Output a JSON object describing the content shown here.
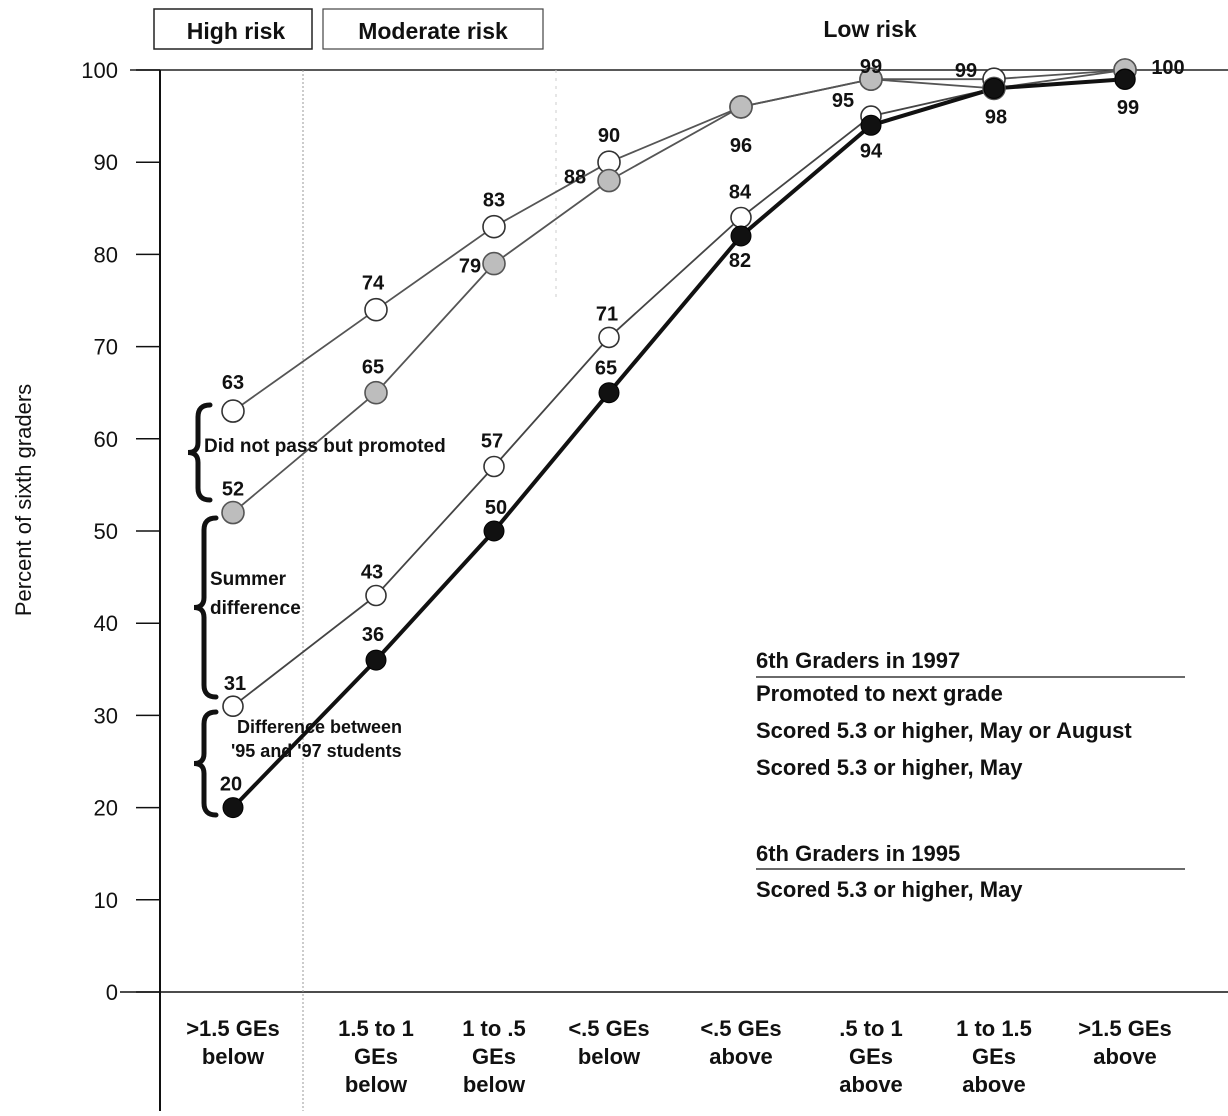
{
  "chart_data": {
    "type": "line",
    "ylabel": "Percent of sixth graders",
    "ylim": [
      0,
      100
    ],
    "yticks": [
      0,
      10,
      20,
      30,
      40,
      50,
      60,
      70,
      80,
      90,
      100
    ],
    "grid": false,
    "categories": [
      [
        ">1.5 GEs",
        "below"
      ],
      [
        "1.5 to 1",
        "GEs",
        "below"
      ],
      [
        "1 to .5",
        "GEs",
        "below"
      ],
      [
        "<.5 GEs",
        "below"
      ],
      [
        "<.5 GEs",
        "above"
      ],
      [
        ".5 to 1",
        "GEs",
        "above"
      ],
      [
        "1 to 1.5",
        "GEs",
        "above"
      ],
      [
        ">1.5 GEs",
        "above"
      ]
    ],
    "risk_bands": [
      "High risk",
      "Moderate risk",
      "Low risk"
    ],
    "series": [
      {
        "name": "Promoted to next grade",
        "values": [
          63,
          74,
          83,
          90,
          96,
          99,
          99,
          100
        ],
        "labels": [
          "63",
          "74",
          "83",
          "90",
          "96",
          "99",
          "99",
          "100"
        ],
        "marker": "open",
        "color": "#ffffff"
      },
      {
        "name": "Scored 5.3 or higher, May or August",
        "values": [
          52,
          65,
          79,
          88,
          96,
          99,
          98,
          100
        ],
        "labels": [
          "52",
          "65",
          "79",
          "88",
          "",
          "",
          "",
          ""
        ],
        "marker": "gray",
        "color": "#b8b8b8"
      },
      {
        "name": "Scored 5.3 or higher, May",
        "values": [
          31,
          43,
          57,
          71,
          84,
          95,
          98,
          99
        ],
        "labels": [
          "31",
          "43",
          "57",
          "71",
          "84",
          "95",
          "",
          ""
        ],
        "marker": "open",
        "color": "#ffffff"
      },
      {
        "name": "Scored 5.3 or higher, May",
        "values": [
          20,
          36,
          50,
          65,
          82,
          94,
          98,
          99
        ],
        "labels": [
          "20",
          "36",
          "50",
          "65",
          "82",
          "94",
          "98",
          "99"
        ],
        "marker": "solid",
        "color": "#111111"
      }
    ],
    "legend": {
      "group1_title": "6th Graders in 1997",
      "group1_items": [
        "Promoted to next grade",
        "Scored 5.3 or higher, May or August",
        "Scored 5.3 or higher, May"
      ],
      "group2_title": "6th Graders in 1995",
      "group2_items": [
        "Scored 5.3 or higher, May"
      ],
      "placement": "bottom-right"
    },
    "annotations": [
      [
        "Did not pass but promoted"
      ],
      [
        "Summer",
        "difference"
      ],
      [
        "Difference between",
        "'95 and '97 students"
      ]
    ]
  }
}
